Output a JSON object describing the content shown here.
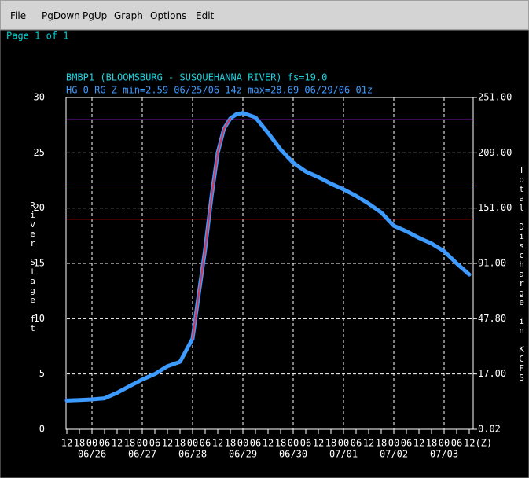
{
  "menu": [
    "File",
    "PgDown",
    "PgUp",
    "Graph",
    "Options",
    "Edit"
  ],
  "page_label": "Page 1 of 1",
  "chart_data": {
    "type": "line",
    "title": "BMBP1 (BLOOMSBURG - SUSQUEHANNA RIVER) fs=19.0",
    "subtitle": "HG 0 RG Z min=2.59 06/25/06 14z max=28.69 06/29/06 01z",
    "ylabel": "River Stage ft",
    "y2label": "Total Discharge in KCFS",
    "xlim": [
      "06/25 12",
      "07/03 12"
    ],
    "ylim": [
      0,
      30
    ],
    "yticks": [
      0,
      5,
      10,
      15,
      20,
      25,
      30
    ],
    "y2ticks": [
      {
        "value": 0.02,
        "label": "0.02"
      },
      {
        "value": 17,
        "label": "17.00"
      },
      {
        "value": 47.8,
        "label": "47.80"
      },
      {
        "value": 91,
        "label": "91.00"
      },
      {
        "value": 151,
        "label": "151.00"
      },
      {
        "value": 209,
        "label": "209.00"
      },
      {
        "value": 251,
        "label": "251.00"
      }
    ],
    "xticks": [
      {
        "value": "06/25 12",
        "label": "12"
      },
      {
        "value": "06/25 18",
        "label": "18"
      },
      {
        "value": "06/26 00",
        "label": "00"
      },
      {
        "value": "06/26 06",
        "label": "06"
      },
      {
        "value": "06/26 12",
        "label": "12"
      },
      {
        "value": "06/26 18",
        "label": "18"
      },
      {
        "value": "06/27 00",
        "label": "00"
      },
      {
        "value": "06/27 06",
        "label": "06"
      },
      {
        "value": "06/27 12",
        "label": "12"
      },
      {
        "value": "06/27 18",
        "label": "18"
      },
      {
        "value": "06/28 00",
        "label": "00"
      },
      {
        "value": "06/28 06",
        "label": "06"
      },
      {
        "value": "06/28 12",
        "label": "12"
      },
      {
        "value": "06/28 18",
        "label": "18"
      },
      {
        "value": "06/29 00",
        "label": "00"
      },
      {
        "value": "06/29 06",
        "label": "06"
      },
      {
        "value": "06/29 12",
        "label": "12"
      },
      {
        "value": "06/29 18",
        "label": "18"
      },
      {
        "value": "06/30 00",
        "label": "00"
      },
      {
        "value": "06/30 06",
        "label": "06"
      },
      {
        "value": "06/30 12",
        "label": "12"
      },
      {
        "value": "06/30 18",
        "label": "18"
      },
      {
        "value": "07/01 00",
        "label": "00"
      },
      {
        "value": "07/01 06",
        "label": "06"
      },
      {
        "value": "07/01 12",
        "label": "12"
      },
      {
        "value": "07/01 18",
        "label": "18"
      },
      {
        "value": "07/02 00",
        "label": "00"
      },
      {
        "value": "07/02 06",
        "label": "06"
      },
      {
        "value": "07/02 12",
        "label": "12"
      },
      {
        "value": "07/02 18",
        "label": "18"
      },
      {
        "value": "07/03 00",
        "label": "00"
      },
      {
        "value": "07/03 06",
        "label": "06"
      },
      {
        "value": "07/03 12",
        "label": "12(Z)"
      }
    ],
    "date_ticks": [
      {
        "value": "06/26 00",
        "label": "06/26"
      },
      {
        "value": "06/27 00",
        "label": "06/27"
      },
      {
        "value": "06/28 00",
        "label": "06/28"
      },
      {
        "value": "06/29 00",
        "label": "06/29"
      },
      {
        "value": "06/30 00",
        "label": "06/30"
      },
      {
        "value": "07/01 00",
        "label": "07/01"
      },
      {
        "value": "07/02 00",
        "label": "07/02"
      },
      {
        "value": "07/03 00",
        "label": "07/03"
      }
    ],
    "grid": true,
    "reference_lines": [
      {
        "value": 28,
        "color": "#a020f0"
      },
      {
        "value": 22,
        "color": "#0000ff"
      },
      {
        "value": 19,
        "color": "#ff0000"
      }
    ],
    "series": [
      {
        "color": "#3d9bff",
        "width": 5,
        "x": [
          "06/25 12",
          "06/25 18",
          "06/26 00",
          "06/26 06",
          "06/26 12",
          "06/26 18",
          "06/27 00",
          "06/27 06",
          "06/27 12",
          "06/27 18",
          "06/28 00",
          "06/28 03",
          "06/28 06",
          "06/28 09",
          "06/28 12",
          "06/28 15",
          "06/28 18",
          "06/28 21",
          "06/29 00",
          "06/29 06",
          "06/29 12",
          "06/29 18",
          "06/30 00",
          "06/30 06",
          "06/30 12",
          "06/30 18",
          "07/01 00",
          "07/01 06",
          "07/01 12",
          "07/01 18",
          "07/02 00",
          "07/02 06",
          "07/02 12",
          "07/02 18",
          "07/03 00",
          "07/03 06",
          "07/03 12"
        ],
        "values": [
          2.6,
          2.65,
          2.7,
          2.8,
          3.3,
          3.9,
          4.5,
          5.0,
          5.7,
          6.1,
          8.2,
          12.3,
          16.3,
          21.0,
          25.0,
          27.2,
          28.1,
          28.5,
          28.6,
          28.2,
          26.8,
          25.3,
          24.1,
          23.3,
          22.8,
          22.2,
          21.7,
          21.1,
          20.4,
          19.6,
          18.4,
          17.9,
          17.3,
          16.8,
          16.1,
          15.0,
          14.0
        ]
      },
      {
        "color": "#e0304a",
        "width": 2,
        "x": [
          "06/28 00",
          "06/28 03",
          "06/28 06",
          "06/28 09",
          "06/28 12",
          "06/28 15",
          "06/28 18"
        ],
        "values": [
          8.2,
          12.3,
          16.3,
          21.0,
          25.0,
          27.2,
          28.1
        ]
      }
    ]
  }
}
